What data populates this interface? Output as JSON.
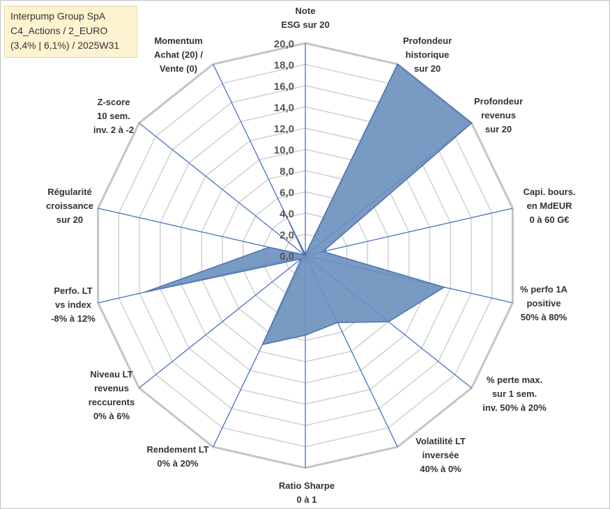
{
  "title_box": {
    "line1": "Interpump Group SpA",
    "line2": "C4_Actions / 2_EURO",
    "line3": "(3,4% | 6,1%) / 2025W31"
  },
  "chart_data": {
    "type": "radar",
    "rmax": 20,
    "rticks": [
      "0,0",
      "2,0",
      "4,0",
      "6,0",
      "8,0",
      "10,0",
      "12,0",
      "14,0",
      "16,0",
      "18,0",
      "20,0"
    ],
    "categories": [
      [
        "Note",
        "ESG sur 20"
      ],
      [
        "Profondeur",
        "historique",
        "sur 20"
      ],
      [
        "Profondeur",
        "revenus",
        "sur 20"
      ],
      [
        "Capi. bours.",
        "en MdEUR",
        "0 à 60 G€"
      ],
      [
        "% perfo 1A",
        "positive",
        "50% à 80%"
      ],
      [
        "% perte max.",
        "sur 1 sem.",
        "inv. 50% à 20%"
      ],
      [
        "Volatilité LT",
        "inversée",
        "40% à 0%"
      ],
      [
        "Ratio Sharpe",
        "0 à 1"
      ],
      [
        "Rendement LT",
        "0% à 20%"
      ],
      [
        "Niveau LT",
        "revenus",
        "reccurents",
        "0% à 6%"
      ],
      [
        "Perfo. LT",
        "vs index",
        "-8% à 12%"
      ],
      [
        "Régularité",
        "croissance",
        "sur 20"
      ],
      [
        "Z-score",
        "10 sem.",
        "inv. 2 à -2"
      ],
      [
        "Momentum",
        "Achat (20) /",
        "Vente (0)"
      ]
    ],
    "values": [
      0.1,
      20,
      20,
      1.7,
      13.4,
      10.0,
      7.0,
      7.5,
      9.3,
      0.5,
      15.5,
      3.5,
      0.1,
      3.6
    ],
    "colors": {
      "fill": "#6a8fbd",
      "stroke": "#4a72b0",
      "grid": "#d0d0d0",
      "spoke": "#4472c4"
    }
  }
}
